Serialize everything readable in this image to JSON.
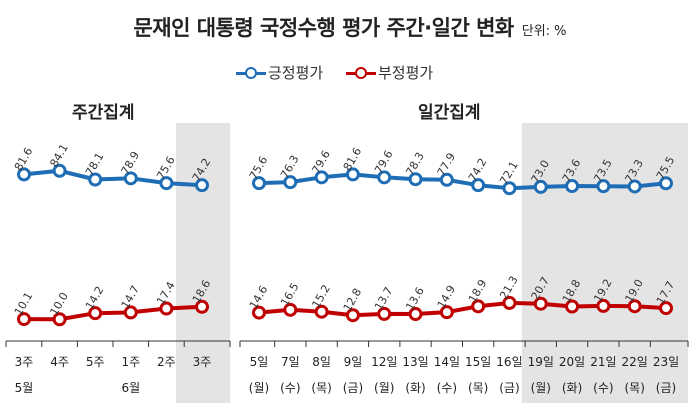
{
  "title": {
    "main": "문재인 대통령 국정수행 평가 주간·일간 변화",
    "unit": "단위: %"
  },
  "legend": [
    {
      "name": "긍정평가",
      "color": "#1F6EB5"
    },
    {
      "name": "부정평가",
      "color": "#C00000"
    }
  ],
  "chart_data": [
    {
      "type": "line",
      "title": "주간집계",
      "categories": [
        "3주",
        "4주",
        "5주",
        "1주",
        "2주",
        "3주"
      ],
      "month_labels": [
        {
          "at": 0,
          "text": "5월"
        },
        {
          "at": 3,
          "text": "6월"
        }
      ],
      "series": [
        {
          "name": "긍정평가",
          "color": "#1F6EB5",
          "values": [
            81.6,
            84.1,
            78.1,
            78.9,
            75.6,
            74.2
          ]
        },
        {
          "name": "부정평가",
          "color": "#C00000",
          "values": [
            10.1,
            10.0,
            14.2,
            14.7,
            17.4,
            18.6
          ]
        }
      ],
      "highlight_categories": [
        "3주"
      ]
    },
    {
      "type": "line",
      "title": "일간집계",
      "categories": [
        "5일",
        "7일",
        "8일",
        "9일",
        "12일",
        "13일",
        "14일",
        "15일",
        "16일",
        "19일",
        "20일",
        "21일",
        "22일",
        "23일"
      ],
      "day_of_week": [
        "(월)",
        "(수)",
        "(목)",
        "(금)",
        "(월)",
        "(화)",
        "(수)",
        "(목)",
        "(금)",
        "(월)",
        "(화)",
        "(수)",
        "(목)",
        "(금)"
      ],
      "series": [
        {
          "name": "긍정평가",
          "color": "#1F6EB5",
          "values": [
            75.6,
            76.3,
            79.6,
            81.6,
            79.6,
            78.3,
            77.9,
            74.2,
            72.1,
            73.0,
            73.6,
            73.5,
            73.3,
            75.5
          ]
        },
        {
          "name": "부정평가",
          "color": "#C00000",
          "values": [
            14.6,
            16.5,
            15.2,
            12.8,
            13.7,
            13.6,
            14.9,
            18.9,
            21.3,
            20.7,
            18.8,
            19.2,
            19.0,
            17.7
          ]
        }
      ],
      "highlight_categories": [
        "19일",
        "20일",
        "21일",
        "22일",
        "23일"
      ]
    }
  ]
}
